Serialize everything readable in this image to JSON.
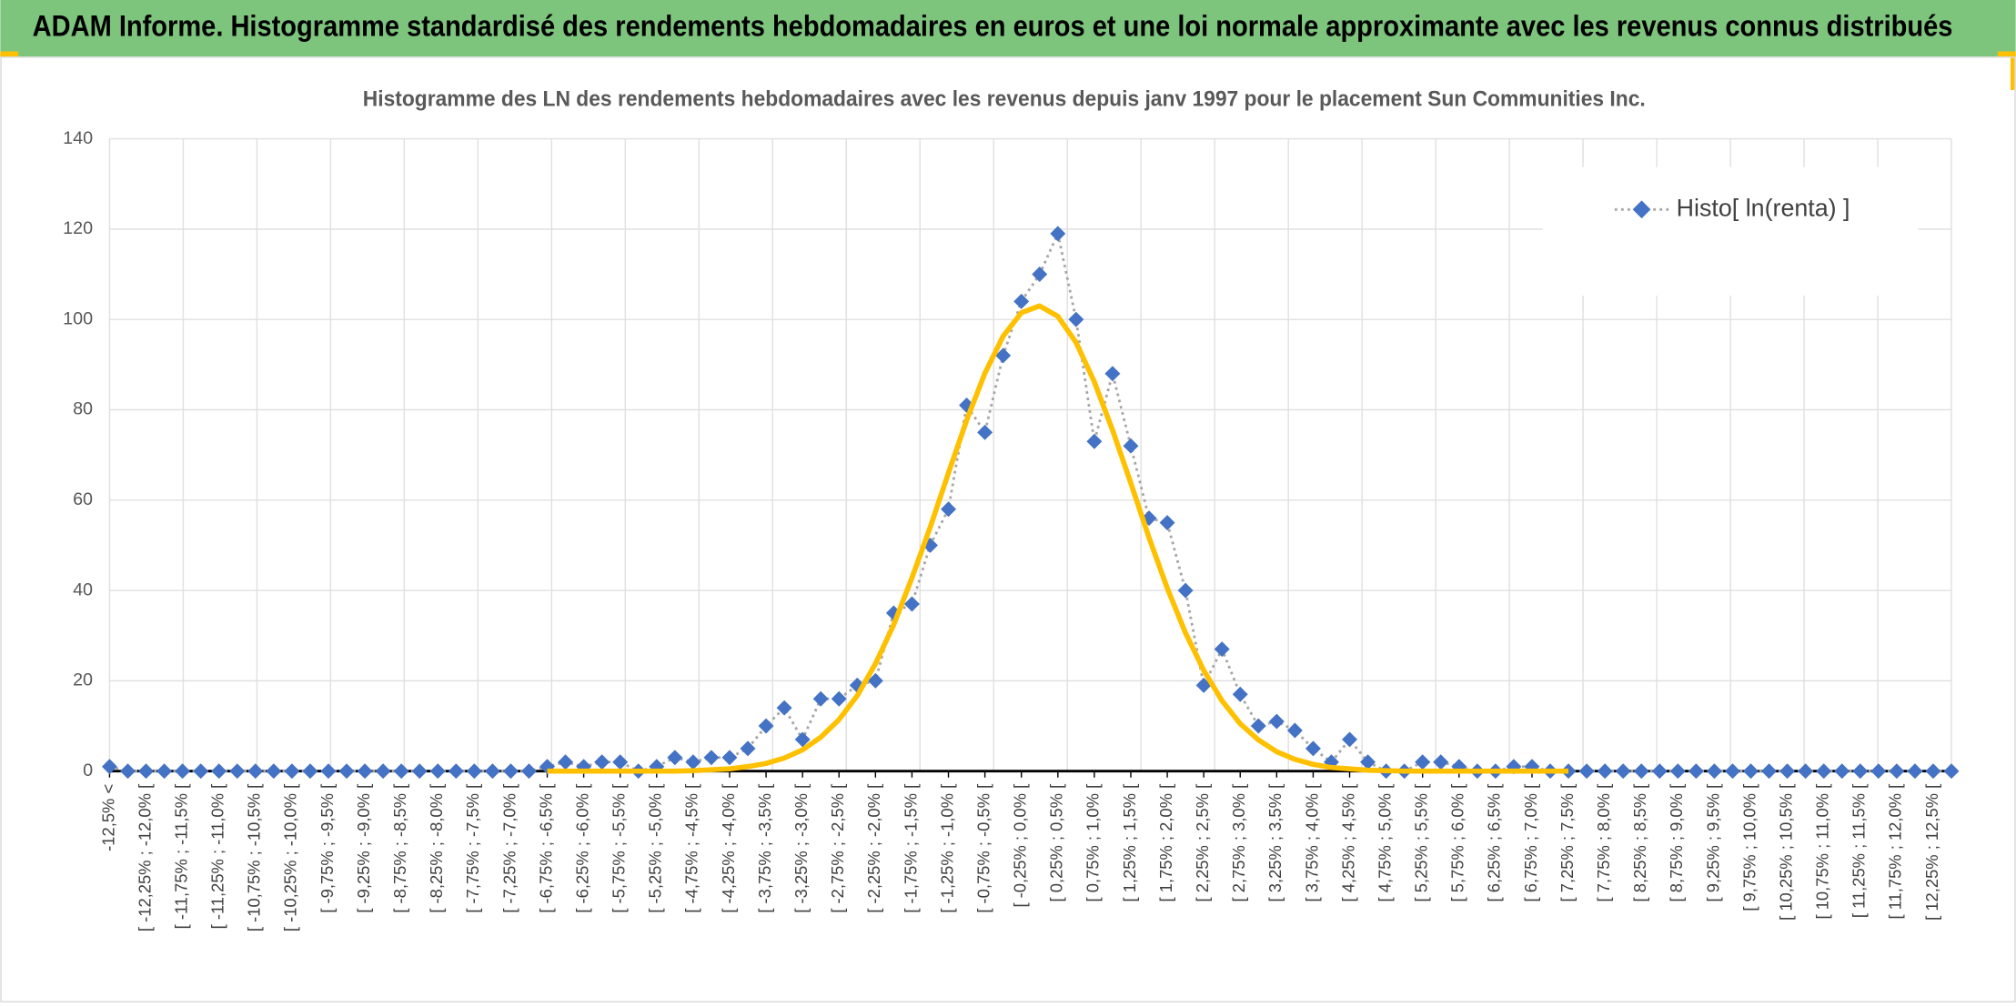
{
  "header": {
    "title": "ADAM Informe. Histogramme standardisé des rendements hebdomadaires en euros et une loi normale approximante avec les revenus connus distribués"
  },
  "chart_data": {
    "type": "line",
    "title": "Histogramme des LN des rendements hebdomadaires avec les revenus depuis janv 1997 pour le placement Sun Communities Inc.",
    "categories": [
      "-12,5% <",
      null,
      "[ -12,25% ; -12,0% [",
      null,
      "[ -11,75% ; -11,5% [",
      null,
      "[ -11,25% ; -11,0% [",
      null,
      "[ -10,75% ; -10,5% [",
      null,
      "[ -10,25% ; -10,0% [",
      null,
      "[ -9,75% ; -9,5% [",
      null,
      "[ -9,25% ; -9,0% [",
      null,
      "[ -8,75% ; -8,5% [",
      null,
      "[ -8,25% ; -8,0% [",
      null,
      "[ -7,75% ; -7,5% [",
      null,
      "[ -7,25% ; -7,0% [",
      null,
      "[ -6,75% ; -6,5% [",
      null,
      "[ -6,25% ; -6,0% [",
      null,
      "[ -5,75% ; -5,5% [",
      null,
      "[ -5,25% ; -5,0% [",
      null,
      "[ -4,75% ; -4,5% [",
      null,
      "[ -4,25% ; -4,0% [",
      null,
      "[ -3,75% ; -3,5% [",
      null,
      "[ -3,25% ; -3,0% [",
      null,
      "[ -2,75% ; -2,5% [",
      null,
      "[ -2,25% ; -2,0% [",
      null,
      "[ -1,75% ; -1,5% [",
      null,
      "[ -1,25% ; -1,0% [",
      null,
      "[ -0,75% ; -0,5% [",
      null,
      "[ -0,25% ; 0,0% [",
      null,
      "[ 0,25% ; 0,5% [",
      null,
      "[ 0,75% ; 1,0% [",
      null,
      "[ 1,25% ; 1,5% [",
      null,
      "[ 1,75% ; 2,0% [",
      null,
      "[ 2,25% ; 2,5% [",
      null,
      "[ 2,75% ; 3,0% [",
      null,
      "[ 3,25% ; 3,5% [",
      null,
      "[ 3,75% ; 4,0% [",
      null,
      "[ 4,25% ; 4,5% [",
      null,
      "[ 4,75% ; 5,0% [",
      null,
      "[ 5,25% ; 5,5% [",
      null,
      "[ 5,75% ; 6,0% [",
      null,
      "[ 6,25% ; 6,5% [",
      null,
      "[ 6,75% ; 7,0% [",
      null,
      "[ 7,25% ; 7,5% [",
      null,
      "[ 7,75% ; 8,0% [",
      null,
      "[ 8,25% ; 8,5% [",
      null,
      "[ 8,75% ; 9,0% [",
      null,
      "[ 9,25% ; 9,5% [",
      null,
      "[ 9,75% ; 10,0% [",
      null,
      "[ 10,25% ; 10,5% [",
      null,
      "[ 10,75% ; 11,0% [",
      null,
      "[ 11,25% ; 11,5% [",
      null,
      "[ 11,75% ; 12,0% [",
      null,
      "[ 12,25% ; 12,5% [",
      null
    ],
    "series": [
      {
        "name": "Histo[ ln(renta) ]",
        "color": "#4472c4",
        "line_color": "#a6a6a6",
        "values": [
          1,
          0,
          0,
          0,
          0,
          0,
          0,
          0,
          0,
          0,
          0,
          0,
          0,
          0,
          0,
          0,
          0,
          0,
          0,
          0,
          0,
          0,
          0,
          0,
          1,
          2,
          1,
          2,
          2,
          0,
          1,
          3,
          2,
          3,
          3,
          5,
          10,
          14,
          7,
          16,
          16,
          19,
          20,
          35,
          37,
          50,
          58,
          81,
          75,
          92,
          104,
          110,
          119,
          100,
          73,
          88,
          72,
          56,
          55,
          40,
          19,
          27,
          17,
          10,
          11,
          9,
          5,
          2,
          7,
          2,
          0,
          0,
          2,
          2,
          1,
          0,
          0,
          1,
          1,
          0,
          0,
          0,
          0,
          0,
          0,
          0,
          0,
          0,
          0,
          0,
          0,
          0,
          0,
          0,
          0,
          0,
          0,
          0,
          0,
          0,
          0,
          0
        ]
      },
      {
        "color": "#ffc000",
        "values": [
          null,
          null,
          null,
          null,
          null,
          null,
          null,
          null,
          null,
          null,
          null,
          null,
          null,
          null,
          null,
          null,
          null,
          null,
          null,
          null,
          null,
          null,
          null,
          null,
          0,
          0,
          0,
          0,
          0,
          0,
          0,
          0,
          0.1,
          0.3,
          0.5,
          1.0,
          1.7,
          2.9,
          4.7,
          7.5,
          11.4,
          16.7,
          23.8,
          32.4,
          42.8,
          54.0,
          66.0,
          77.7,
          88.1,
          96.3,
          101.5,
          103.0,
          100.7,
          94.9,
          86.2,
          75.5,
          63.8,
          51.7,
          40.5,
          30.6,
          22.3,
          15.6,
          10.5,
          6.9,
          4.3,
          2.6,
          1.5,
          0.8,
          0.5,
          0.2,
          0.1,
          0,
          0,
          0,
          0,
          0,
          0,
          0,
          0,
          0,
          0,
          null,
          null,
          null,
          null,
          null,
          null,
          null,
          null,
          null,
          null,
          null,
          null,
          null,
          null,
          null,
          null,
          null,
          null,
          null,
          null,
          null
        ]
      }
    ],
    "ylim": [
      0,
      140
    ],
    "yticks": [
      0,
      20,
      40,
      60,
      80,
      100,
      120,
      140
    ],
    "grid": true,
    "legend": "top-right"
  }
}
